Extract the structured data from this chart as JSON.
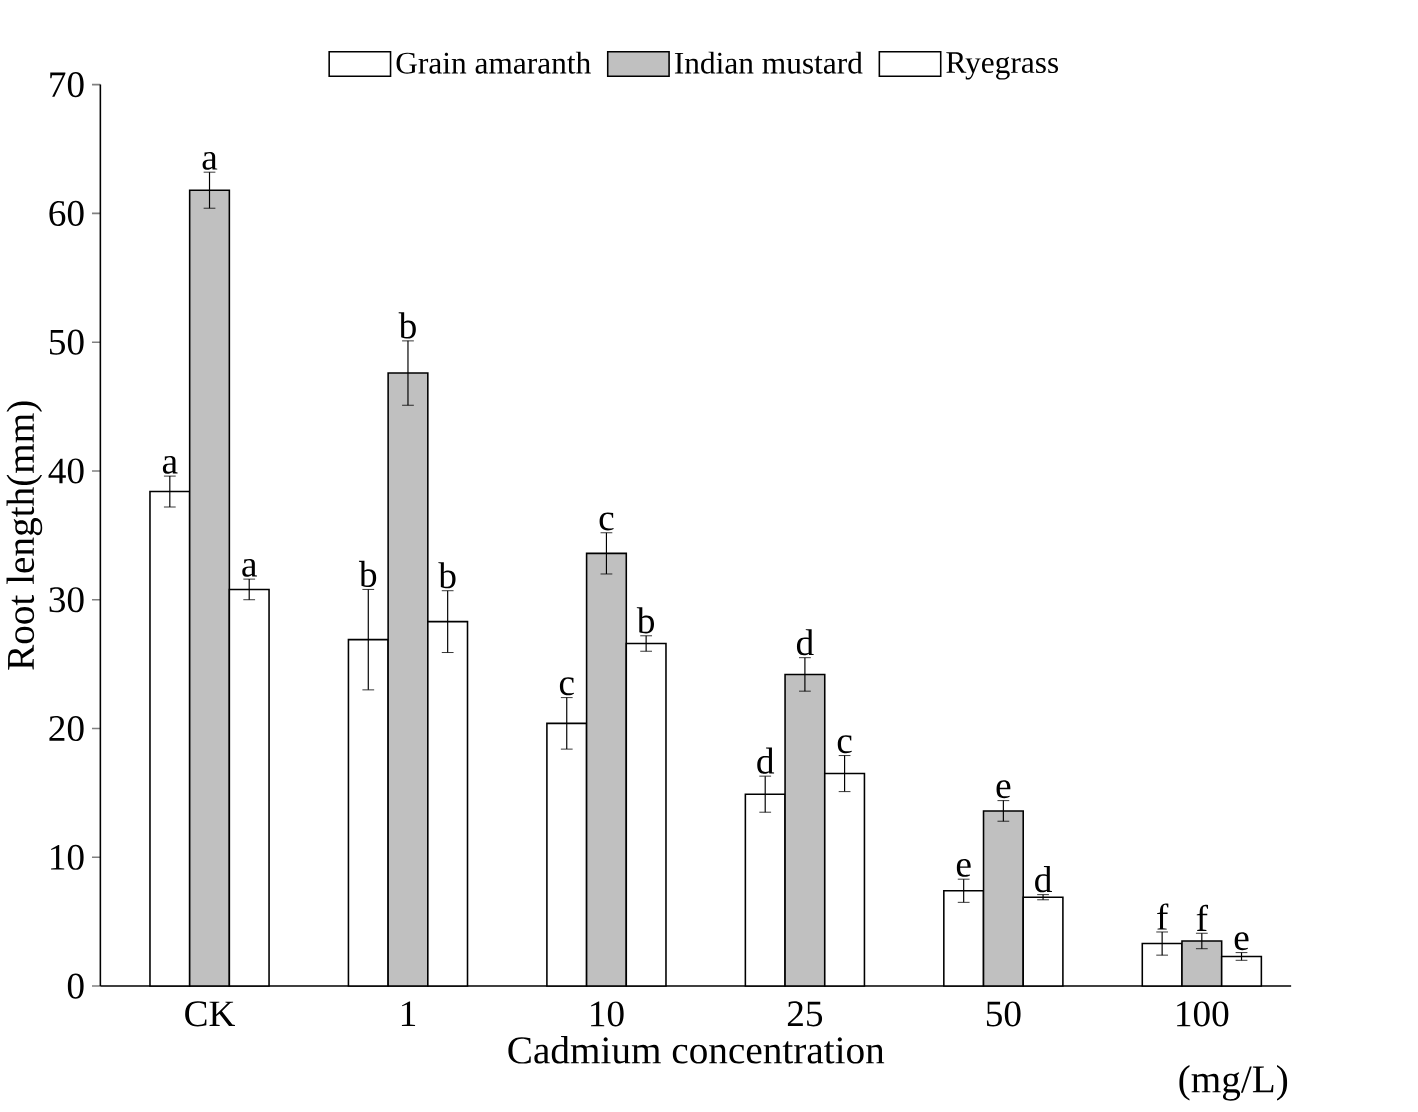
{
  "chart_data": {
    "type": "bar",
    "xlabel": "Cadmium concentration",
    "ylabel": "Root length(mm)",
    "categories": [
      "CK",
      "1",
      "10",
      "25",
      "50",
      "100"
    ],
    "series": [
      {
        "name": "Grain amaranth",
        "color": "#ffffff",
        "values": [
          38.4,
          26.9,
          20.4,
          14.9,
          7.4,
          3.3
        ],
        "errors": [
          1.2,
          3.9,
          2.0,
          1.4,
          0.9,
          0.9
        ]
      },
      {
        "name": "Indian mustard",
        "color": "#c0c0c0",
        "values": [
          61.8,
          47.6,
          33.6,
          24.2,
          13.6,
          3.5
        ],
        "errors": [
          1.4,
          2.5,
          1.6,
          1.3,
          0.8,
          0.6
        ]
      },
      {
        "name": "Ryegrass",
        "color": "#ffffff",
        "values": [
          30.8,
          28.3,
          26.6,
          16.5,
          6.9,
          2.3
        ],
        "errors": [
          0.8,
          2.4,
          0.6,
          1.4,
          0.2,
          0.3
        ]
      }
    ],
    "ylim": [
      0,
      70
    ],
    "yticks": [
      0,
      10,
      20,
      30,
      40,
      50,
      60,
      70
    ],
    "legend": "top",
    "annotations": [
      "a",
      "a",
      "a",
      "b",
      "b",
      "b",
      "c",
      "c",
      "b",
      "d",
      "d",
      "c",
      "e",
      "e",
      "d",
      "f",
      "f",
      "e",
      "(mg/L)"
    ]
  }
}
